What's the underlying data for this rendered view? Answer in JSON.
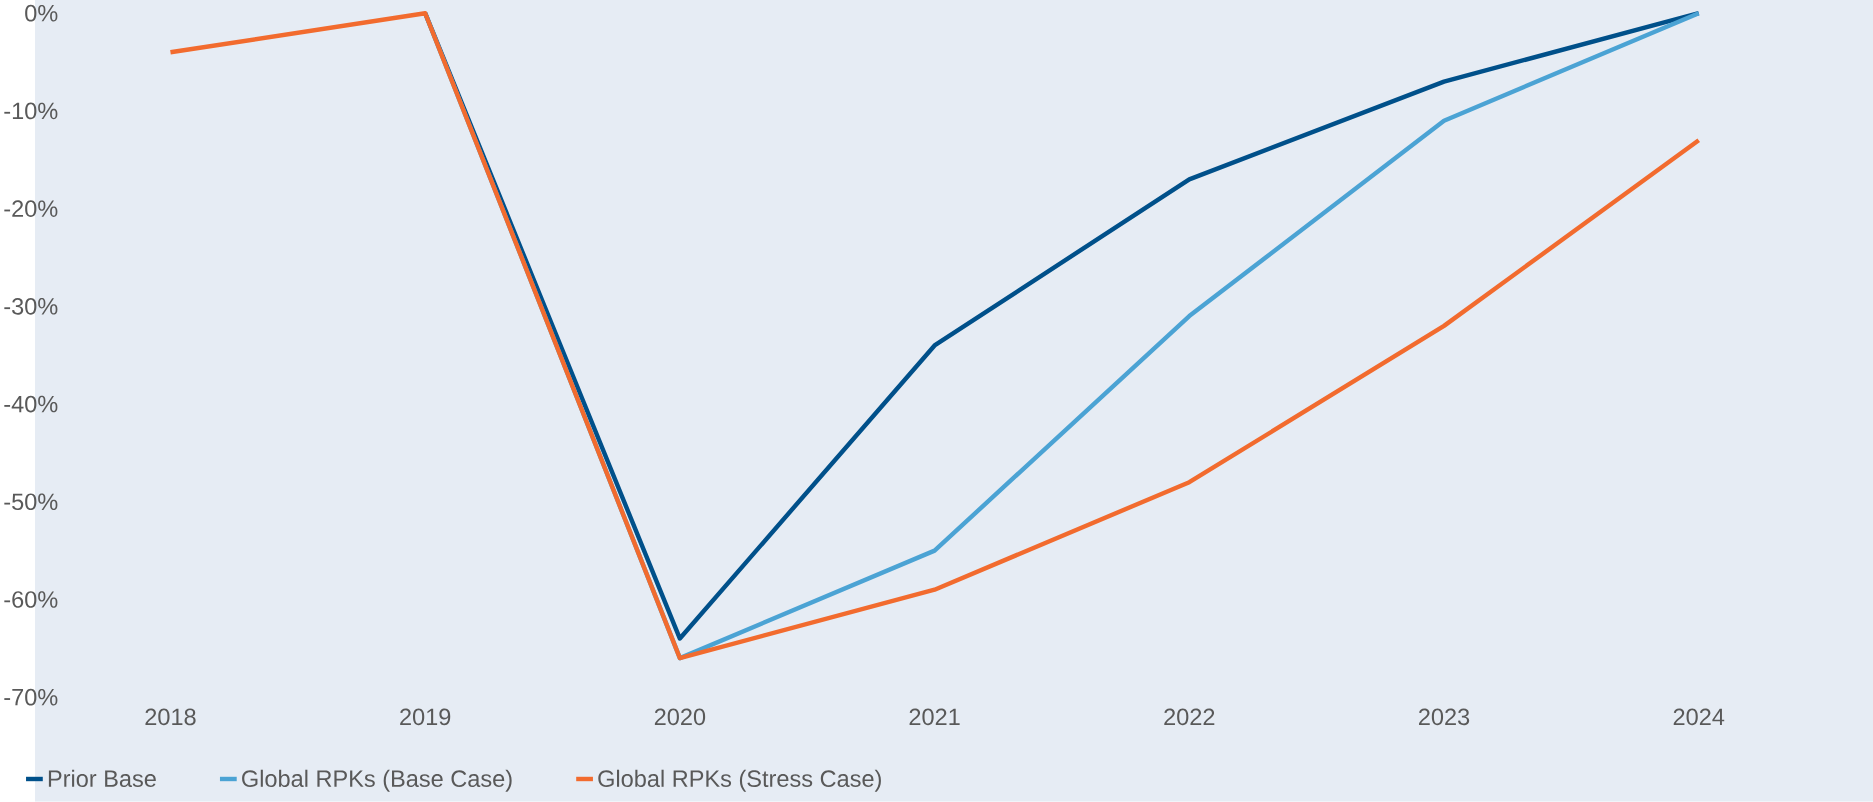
{
  "chart_data": {
    "type": "line",
    "categories": [
      "2018",
      "2019",
      "2020",
      "2021",
      "2022",
      "2023",
      "2024"
    ],
    "series": [
      {
        "name": "Prior Base",
        "color": "#00508a",
        "values": [
          null,
          0,
          -64,
          -34,
          -17,
          -7,
          0
        ]
      },
      {
        "name": "Global RPKs (Base Case)",
        "color": "#4ba3d4",
        "values": [
          null,
          0,
          -66,
          -55,
          -31,
          -11,
          0
        ]
      },
      {
        "name": "Global RPKs (Stress Case)",
        "color": "#f26b2e",
        "values": [
          -4,
          0,
          -66,
          -59,
          -48,
          -32,
          -13
        ]
      }
    ],
    "ylim": [
      -70,
      0
    ],
    "yticks": [
      {
        "value": 0,
        "label": "0%"
      },
      {
        "value": -10,
        "label": "-10%"
      },
      {
        "value": -20,
        "label": "-20%"
      },
      {
        "value": -30,
        "label": "-30%"
      },
      {
        "value": -40,
        "label": "-40%"
      },
      {
        "value": -50,
        "label": "-50%"
      },
      {
        "value": -60,
        "label": "-60%"
      },
      {
        "value": -70,
        "label": "-70%"
      }
    ],
    "legend": "bottom",
    "marker": "none",
    "line_style": "solid"
  }
}
